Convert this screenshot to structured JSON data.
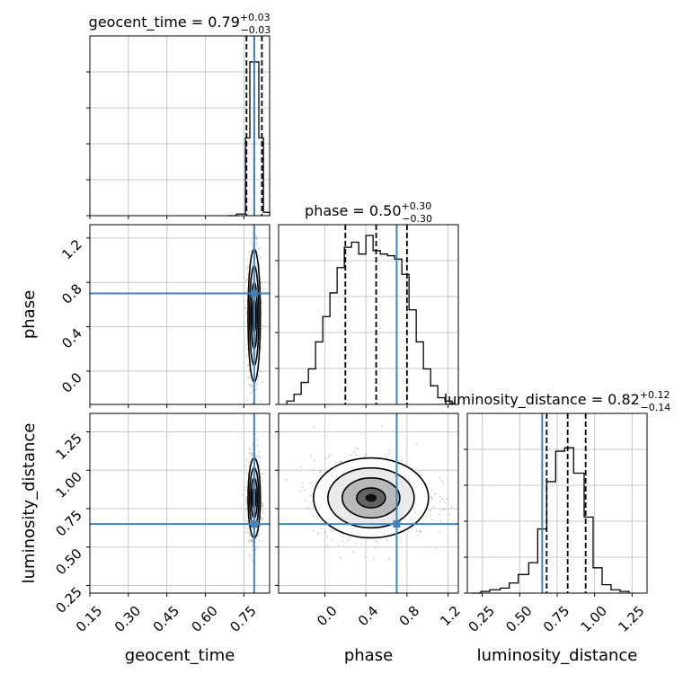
{
  "chart_data": {
    "type": "corner",
    "parameters": [
      "geocent_time",
      "phase",
      "luminosity_distance"
    ],
    "truth": {
      "geocent_time": 0.79,
      "phase": 0.7,
      "luminosity_distance": 0.65
    },
    "grid": true,
    "diagonals": [
      {
        "parameter": "geocent_time",
        "title": {
          "text": "geocent_time = 0.79",
          "plus": "+0.03",
          "minus": "−0.03"
        },
        "xlim": [
          0.15,
          0.85
        ],
        "quantiles": [
          0.76,
          0.79,
          0.82
        ],
        "bins": [
          {
            "x0": 0.686,
            "x1": 0.721,
            "h": 0.0
          },
          {
            "x0": 0.721,
            "x1": 0.756,
            "h": 0.01
          },
          {
            "x0": 0.756,
            "x1": 0.773,
            "h": 0.46
          },
          {
            "x0": 0.773,
            "x1": 0.791,
            "h": 0.91
          },
          {
            "x0": 0.791,
            "x1": 0.808,
            "h": 0.91
          },
          {
            "x0": 0.808,
            "x1": 0.826,
            "h": 0.46
          },
          {
            "x0": 0.826,
            "x1": 0.85,
            "h": 0.02
          }
        ]
      },
      {
        "parameter": "phase",
        "title": {
          "text": "phase = 0.50",
          "plus": "+0.30",
          "minus": "−0.30"
        },
        "xlim": [
          -0.45,
          1.3
        ],
        "quantiles": [
          0.2,
          0.5,
          0.8
        ],
        "bins": [
          {
            "x0": -0.37,
            "x1": -0.3,
            "h": 0.02
          },
          {
            "x0": -0.3,
            "x1": -0.23,
            "h": 0.06
          },
          {
            "x0": -0.23,
            "x1": -0.16,
            "h": 0.13
          },
          {
            "x0": -0.16,
            "x1": -0.09,
            "h": 0.21
          },
          {
            "x0": -0.09,
            "x1": -0.02,
            "h": 0.37
          },
          {
            "x0": -0.02,
            "x1": 0.05,
            "h": 0.52
          },
          {
            "x0": 0.05,
            "x1": 0.12,
            "h": 0.66
          },
          {
            "x0": 0.12,
            "x1": 0.19,
            "h": 0.81
          },
          {
            "x0": 0.19,
            "x1": 0.26,
            "h": 0.93
          },
          {
            "x0": 0.26,
            "x1": 0.33,
            "h": 0.96
          },
          {
            "x0": 0.33,
            "x1": 0.4,
            "h": 0.89
          },
          {
            "x0": 0.4,
            "x1": 0.47,
            "h": 1.0
          },
          {
            "x0": 0.47,
            "x1": 0.54,
            "h": 0.91
          },
          {
            "x0": 0.54,
            "x1": 0.61,
            "h": 0.89
          },
          {
            "x0": 0.61,
            "x1": 0.68,
            "h": 0.88
          },
          {
            "x0": 0.68,
            "x1": 0.75,
            "h": 0.86
          },
          {
            "x0": 0.75,
            "x1": 0.82,
            "h": 0.77
          },
          {
            "x0": 0.82,
            "x1": 0.89,
            "h": 0.56
          },
          {
            "x0": 0.89,
            "x1": 0.96,
            "h": 0.37
          },
          {
            "x0": 0.96,
            "x1": 1.03,
            "h": 0.21
          },
          {
            "x0": 1.03,
            "x1": 1.1,
            "h": 0.11
          },
          {
            "x0": 1.1,
            "x1": 1.17,
            "h": 0.04
          },
          {
            "x0": 1.17,
            "x1": 1.24,
            "h": 0.02
          }
        ]
      },
      {
        "parameter": "luminosity_distance",
        "title": {
          "text": "luminosity_distance = 0.82",
          "plus": "+0.12",
          "minus": "−0.14"
        },
        "xlim": [
          0.15,
          1.35
        ],
        "quantiles": [
          0.68,
          0.82,
          0.94
        ],
        "bins": [
          {
            "x0": 0.18,
            "x1": 0.24,
            "h": 0.0
          },
          {
            "x0": 0.24,
            "x1": 0.3,
            "h": 0.01
          },
          {
            "x0": 0.3,
            "x1": 0.37,
            "h": 0.02
          },
          {
            "x0": 0.37,
            "x1": 0.43,
            "h": 0.03
          },
          {
            "x0": 0.43,
            "x1": 0.49,
            "h": 0.06
          },
          {
            "x0": 0.49,
            "x1": 0.56,
            "h": 0.11
          },
          {
            "x0": 0.56,
            "x1": 0.62,
            "h": 0.18
          },
          {
            "x0": 0.62,
            "x1": 0.68,
            "h": 0.38
          },
          {
            "x0": 0.68,
            "x1": 0.74,
            "h": 0.66
          },
          {
            "x0": 0.74,
            "x1": 0.8,
            "h": 0.84
          },
          {
            "x0": 0.8,
            "x1": 0.86,
            "h": 0.86
          },
          {
            "x0": 0.86,
            "x1": 0.93,
            "h": 0.71
          },
          {
            "x0": 0.93,
            "x1": 0.99,
            "h": 0.45
          },
          {
            "x0": 0.99,
            "x1": 1.05,
            "h": 0.15
          },
          {
            "x0": 1.05,
            "x1": 1.11,
            "h": 0.05
          },
          {
            "x0": 1.11,
            "x1": 1.17,
            "h": 0.02
          },
          {
            "x0": 1.17,
            "x1": 1.23,
            "h": 0.01
          }
        ]
      }
    ],
    "panels_2d": [
      {
        "x": "geocent_time",
        "y": "phase",
        "x_center": 0.79,
        "x_sd": 0.012,
        "y_center": 0.5,
        "y_sd": 0.3
      },
      {
        "x": "geocent_time",
        "y": "luminosity_distance",
        "x_center": 0.79,
        "x_sd": 0.012,
        "y_center": 0.82,
        "y_sd": 0.13
      },
      {
        "x": "phase",
        "y": "luminosity_distance",
        "x_center": 0.45,
        "x_sd": 0.28,
        "y_center": 0.82,
        "y_sd": 0.13
      }
    ],
    "axes": {
      "geocent_time": {
        "lim": [
          0.15,
          0.85
        ],
        "ticks": [
          0.15,
          0.3,
          0.45,
          0.6,
          0.75
        ],
        "ticklabels": [
          "0.15",
          "0.30",
          "0.45",
          "0.60",
          "0.75"
        ]
      },
      "phase": {
        "lim": [
          -0.45,
          1.3
        ],
        "ticks": [
          0.0,
          0.4,
          0.8,
          1.2
        ],
        "ticklabels": [
          "0.0",
          "0.4",
          "0.8",
          "1.2"
        ],
        "ylim": [
          -0.3,
          1.32
        ],
        "yticks": [
          0.0,
          0.4,
          0.8,
          1.2
        ],
        "yticklabels": [
          "0.0",
          "0.4",
          "0.8",
          "1.2"
        ]
      },
      "luminosity_distance": {
        "lim": [
          0.15,
          1.35
        ],
        "ticks": [
          0.25,
          0.5,
          0.75,
          1.0,
          1.25
        ],
        "ticklabels": [
          "0.25",
          "0.50",
          "0.75",
          "1.00",
          "1.25"
        ],
        "ylim": [
          0.2,
          1.37
        ],
        "yticks": [
          0.25,
          0.5,
          0.75,
          1.0,
          1.25
        ],
        "yticklabels": [
          "0.25",
          "0.50",
          "0.75",
          "1.00",
          "1.25"
        ]
      }
    },
    "xlabels": [
      "geocent_time",
      "phase",
      "luminosity_distance"
    ],
    "ylabels": [
      "phase",
      "luminosity_distance"
    ]
  },
  "colors": {
    "truth": "#4682b4",
    "hist": "#000000",
    "grid": "#c8c8c8",
    "points": "#888888"
  }
}
